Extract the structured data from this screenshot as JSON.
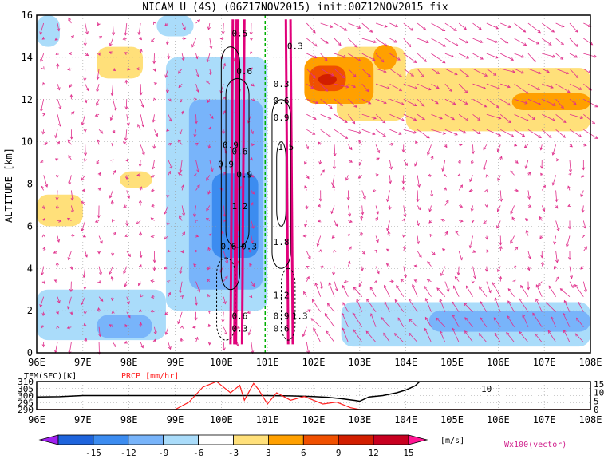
{
  "title": "NICAM U (4S) (06Z17NOV2015) init:00Z12NOV2015 fix",
  "chart_data": [
    {
      "type": "heatmap",
      "ylabel": "ALTITUDE [km]",
      "ylim": [
        0,
        16
      ],
      "xlim": [
        96,
        108
      ],
      "x_ticks": [
        "96E",
        "97E",
        "98E",
        "99E",
        "100E",
        "101E",
        "102E",
        "103E",
        "104E",
        "105E",
        "106E",
        "107E",
        "108E"
      ],
      "y_ticks": [
        "0",
        "2",
        "4",
        "6",
        "8",
        "10",
        "12",
        "14",
        "16"
      ],
      "grid": true,
      "shading_regions": [
        {
          "level": 3,
          "x": [
            97.3,
            98.3
          ],
          "y": [
            13.0,
            14.5
          ]
        },
        {
          "level": 3,
          "x": [
            96.0,
            97.0
          ],
          "y": [
            6.0,
            7.5
          ]
        },
        {
          "level": 3,
          "x": [
            97.8,
            98.5
          ],
          "y": [
            7.8,
            8.6
          ]
        },
        {
          "level": 3,
          "x": [
            102.5,
            104.0
          ],
          "y": [
            11.0,
            14.5
          ]
        },
        {
          "level": 3,
          "x": [
            104.0,
            108.0
          ],
          "y": [
            10.5,
            13.5
          ]
        },
        {
          "level": 6,
          "x": [
            101.8,
            103.3
          ],
          "y": [
            11.8,
            14.0
          ]
        },
        {
          "level": 9,
          "x": [
            101.9,
            102.7
          ],
          "y": [
            12.4,
            13.6
          ]
        },
        {
          "level": 12,
          "x": [
            102.1,
            102.5
          ],
          "y": [
            12.7,
            13.2
          ]
        },
        {
          "level": 6,
          "x": [
            103.3,
            103.8
          ],
          "y": [
            13.4,
            14.6
          ]
        },
        {
          "level": 6,
          "x": [
            106.3,
            108.0
          ],
          "y": [
            11.5,
            12.3
          ]
        },
        {
          "level": -3,
          "x": [
            98.8,
            101.0
          ],
          "y": [
            2.0,
            14.0
          ]
        },
        {
          "level": -6,
          "x": [
            99.3,
            100.9
          ],
          "y": [
            3.0,
            12.0
          ]
        },
        {
          "level": -9,
          "x": [
            99.8,
            100.8
          ],
          "y": [
            4.5,
            8.5
          ]
        },
        {
          "level": -3,
          "x": [
            96.0,
            98.8
          ],
          "y": [
            0.6,
            3.0
          ]
        },
        {
          "level": -6,
          "x": [
            97.3,
            98.5
          ],
          "y": [
            0.7,
            1.8
          ]
        },
        {
          "level": -3,
          "x": [
            102.6,
            108.0
          ],
          "y": [
            0.3,
            2.4
          ]
        },
        {
          "level": -6,
          "x": [
            104.5,
            108.0
          ],
          "y": [
            1.0,
            2.0
          ]
        },
        {
          "level": -3,
          "x": [
            96.0,
            96.5
          ],
          "y": [
            14.5,
            16.0
          ]
        },
        {
          "level": -3,
          "x": [
            98.6,
            99.4
          ],
          "y": [
            15.0,
            16.0
          ]
        }
      ],
      "contour_labels": [
        {
          "text": "0.5",
          "x": 100.4,
          "y": 15.0
        },
        {
          "text": "0.3",
          "x": 101.6,
          "y": 14.4
        },
        {
          "text": "0.6",
          "x": 100.5,
          "y": 13.2
        },
        {
          "text": "0.3",
          "x": 101.3,
          "y": 12.6
        },
        {
          "text": "0.6",
          "x": 101.3,
          "y": 11.8
        },
        {
          "text": "0.9",
          "x": 101.3,
          "y": 11.0
        },
        {
          "text": "0.9",
          "x": 100.2,
          "y": 9.7
        },
        {
          "text": "0.6",
          "x": 100.4,
          "y": 9.4
        },
        {
          "text": "1.5",
          "x": 101.4,
          "y": 9.6
        },
        {
          "text": "0.9",
          "x": 100.1,
          "y": 8.8
        },
        {
          "text": "0.9",
          "x": 100.5,
          "y": 8.3
        },
        {
          "text": "1.2",
          "x": 100.4,
          "y": 6.8
        },
        {
          "text": "-0.6",
          "x": 100.1,
          "y": 4.9
        },
        {
          "text": "0.3",
          "x": 100.6,
          "y": 4.9
        },
        {
          "text": "1.8",
          "x": 101.3,
          "y": 5.1
        },
        {
          "text": "1.2",
          "x": 101.3,
          "y": 2.6
        },
        {
          "text": "0.6",
          "x": 100.4,
          "y": 1.6
        },
        {
          "text": "0.9",
          "x": 101.3,
          "y": 1.6
        },
        {
          "text": "1.3",
          "x": 101.7,
          "y": 1.6
        },
        {
          "text": "0.3",
          "x": 100.4,
          "y": 1.0
        },
        {
          "text": "0.6",
          "x": 101.3,
          "y": 1.0
        }
      ],
      "dashed_line_x": 100.95
    },
    {
      "type": "line",
      "series": [
        {
          "name": "TEM(SFC)[K]",
          "color": "#000000",
          "x": [
            96.0,
            96.5,
            97.0,
            98.0,
            99.0,
            100.0,
            101.0,
            101.5,
            102.0,
            102.3,
            102.6,
            102.9,
            103.0,
            103.2,
            103.5,
            103.8,
            104.0,
            104.2,
            104.3
          ],
          "values": [
            299.0,
            299.2,
            300.0,
            300.0,
            300.0,
            300.0,
            300.0,
            299.8,
            299.3,
            298.8,
            297.8,
            296.5,
            296.0,
            299.0,
            300.0,
            302.0,
            304.0,
            307.0,
            310.0
          ]
        },
        {
          "name": "PRCP [mm/hr]",
          "color": "#ff2020",
          "x": [
            96.0,
            99.0,
            99.3,
            99.6,
            99.9,
            100.0,
            100.2,
            100.4,
            100.5,
            100.7,
            100.8,
            101.0,
            101.2,
            101.5,
            101.8,
            102.2,
            102.5,
            102.8,
            103.0,
            108.0
          ],
          "values": [
            0,
            0,
            4,
            12,
            15,
            13,
            9,
            13,
            5,
            14,
            11,
            3,
            9,
            5,
            7,
            3,
            4,
            1,
            0,
            0
          ]
        }
      ],
      "left_ticks": [
        "310",
        "305",
        "300",
        "295",
        "290"
      ],
      "right_ticks": [
        "15",
        "10",
        "5",
        "0"
      ],
      "x_ticks": [
        "96E",
        "97E",
        "98E",
        "99E",
        "100E",
        "101E",
        "102E",
        "103E",
        "104E",
        "105E",
        "106E",
        "107E",
        "108E"
      ],
      "annotation": "10"
    }
  ],
  "colorbar": {
    "ticks": [
      "-15",
      "-12",
      "-9",
      "-6",
      "-3",
      "3",
      "6",
      "9",
      "12",
      "15"
    ],
    "unit": "[m/s]",
    "colors": [
      "#a020f0",
      "#1e64dc",
      "#3c8cf0",
      "#78b4fa",
      "#aadcfa",
      "#ffffff",
      "#ffe07a",
      "#ffa000",
      "#f05000",
      "#d21e00",
      "#c80020",
      "#ff1493"
    ]
  },
  "vector_label": "Wx100(vector)",
  "colors": {
    "level_colors": {
      "3": "#ffe07a",
      "6": "#ffa000",
      "9": "#f05000",
      "12": "#d21e00",
      "-3": "#aadcfa",
      "-6": "#78b4fa",
      "-9": "#3c8cf0"
    },
    "vector": "#e0308c",
    "dashed": "#00b000",
    "prcp": "#ff2020"
  }
}
